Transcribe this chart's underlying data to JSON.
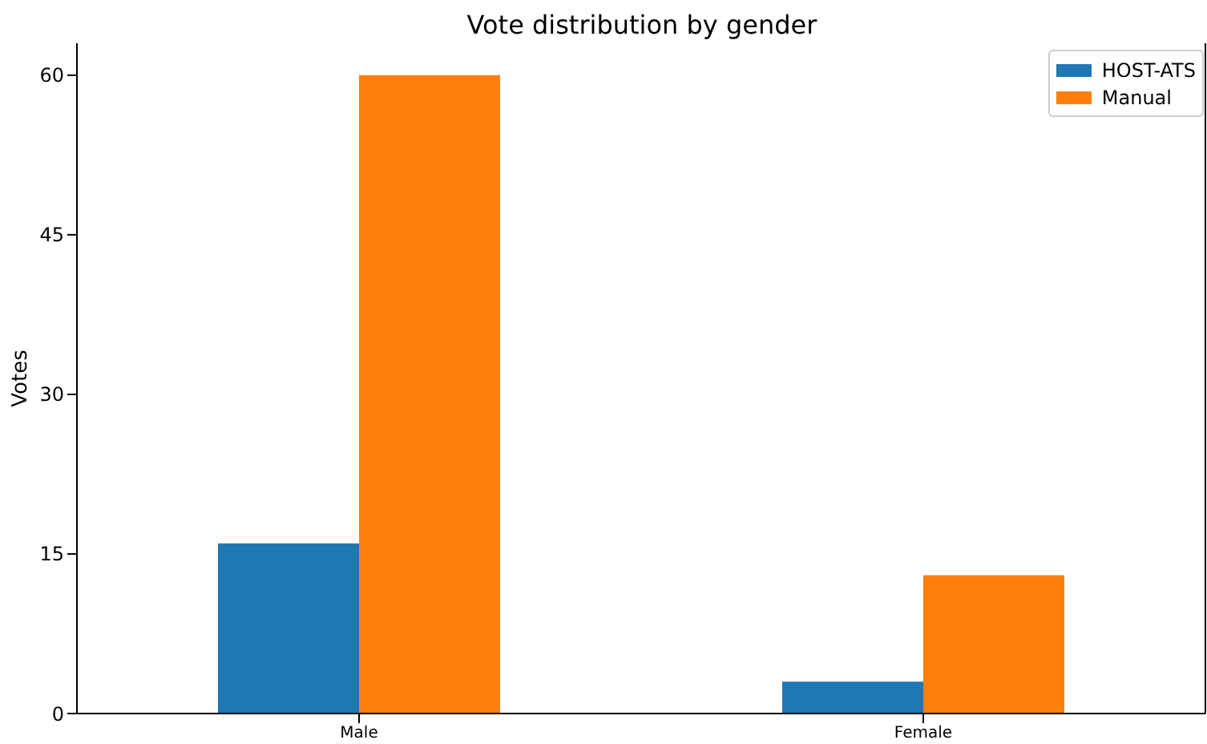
{
  "chart_data": {
    "type": "bar",
    "title": "Vote distribution by gender",
    "ylabel": "Votes",
    "categories": [
      "Male",
      "Female"
    ],
    "series": [
      {
        "name": "HOST-ATS",
        "color": "#1f77b4",
        "values": [
          16,
          3
        ]
      },
      {
        "name": "Manual",
        "color": "#ff7f0e",
        "values": [
          60,
          13
        ]
      }
    ],
    "ylim": [
      0,
      63
    ],
    "yticks": [
      0,
      15,
      30,
      45,
      60
    ],
    "grid": false,
    "legend": "top right"
  }
}
